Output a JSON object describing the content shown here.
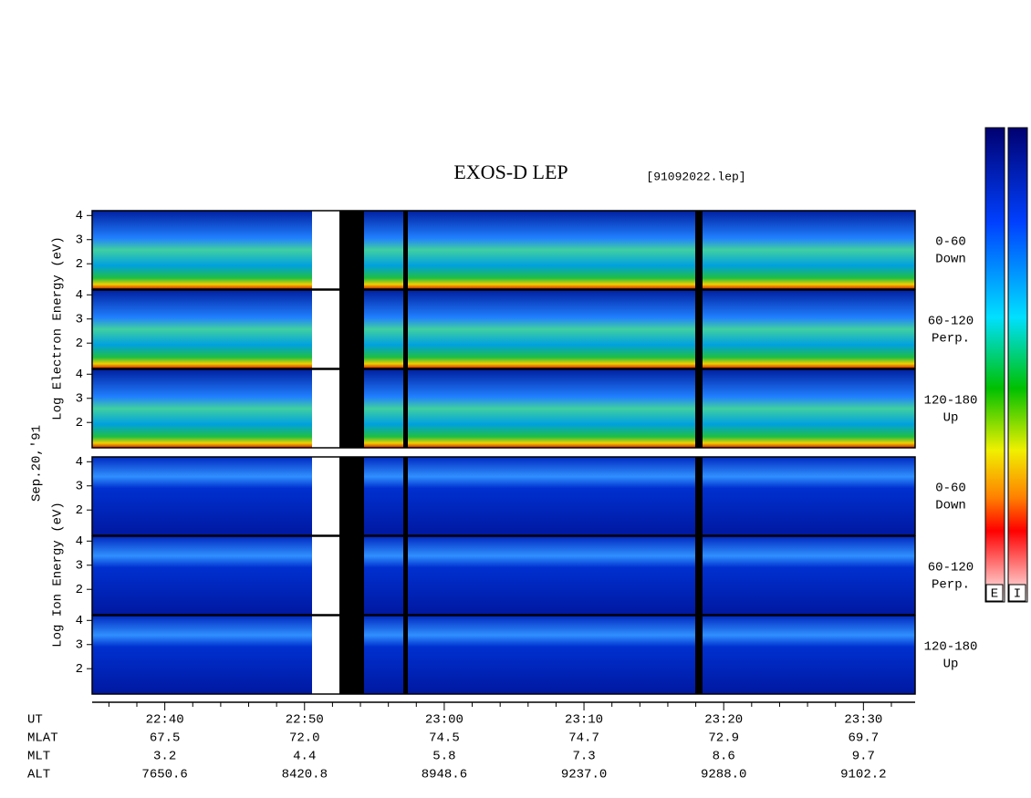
{
  "chart_data": {
    "type": "spectrogram",
    "title": "EXOS-D LEP",
    "file_label": "[91092022.lep]",
    "date_label": "Sep.20,'91",
    "electron_axis_label": "Log Electron Energy (eV)",
    "ion_axis_label": "Log Ion Energy (eV)",
    "panels": [
      {
        "angle": "0-60",
        "direction": "Down"
      },
      {
        "angle": "60-120",
        "direction": "Perp."
      },
      {
        "angle": "120-180",
        "direction": "Up"
      },
      {
        "angle": "0-60",
        "direction": "Down"
      },
      {
        "angle": "60-120",
        "direction": "Perp."
      },
      {
        "angle": "120-180",
        "direction": "Up"
      }
    ],
    "ylim": [
      0.95,
      4.2
    ],
    "yticks": [
      2,
      3,
      4
    ],
    "xlim": [
      1354.8,
      1413.7
    ],
    "xticks": [
      {
        "value": 1360,
        "label": "22:40"
      },
      {
        "value": 1370,
        "label": "22:50"
      },
      {
        "value": 1380,
        "label": "23:00"
      },
      {
        "value": 1390,
        "label": "23:10"
      },
      {
        "value": 1400,
        "label": "23:20"
      },
      {
        "value": 1410,
        "label": "23:30"
      }
    ],
    "xminorticks": [
      1356,
      1358,
      1362,
      1364,
      1366,
      1368,
      1372,
      1374,
      1376,
      1378,
      1382,
      1384,
      1386,
      1388,
      1392,
      1394,
      1396,
      1398,
      1402,
      1404,
      1406,
      1408,
      1412
    ],
    "time_row_label": "UT",
    "orbit_rows": [
      {
        "label": "MLAT",
        "cells": [
          "67.5",
          "72.0",
          "74.5",
          "74.7",
          "72.9",
          "69.7"
        ]
      },
      {
        "label": "MLT",
        "cells": [
          "3.2",
          "4.4",
          "5.8",
          "7.3",
          "8.6",
          "9.7"
        ]
      },
      {
        "label": "ALT",
        "cells": [
          "7650.6",
          "8420.8",
          "8948.6",
          "9237.0",
          "9288.0",
          "9102.2"
        ]
      }
    ],
    "colorbar_labels": [
      "E",
      "I"
    ]
  }
}
